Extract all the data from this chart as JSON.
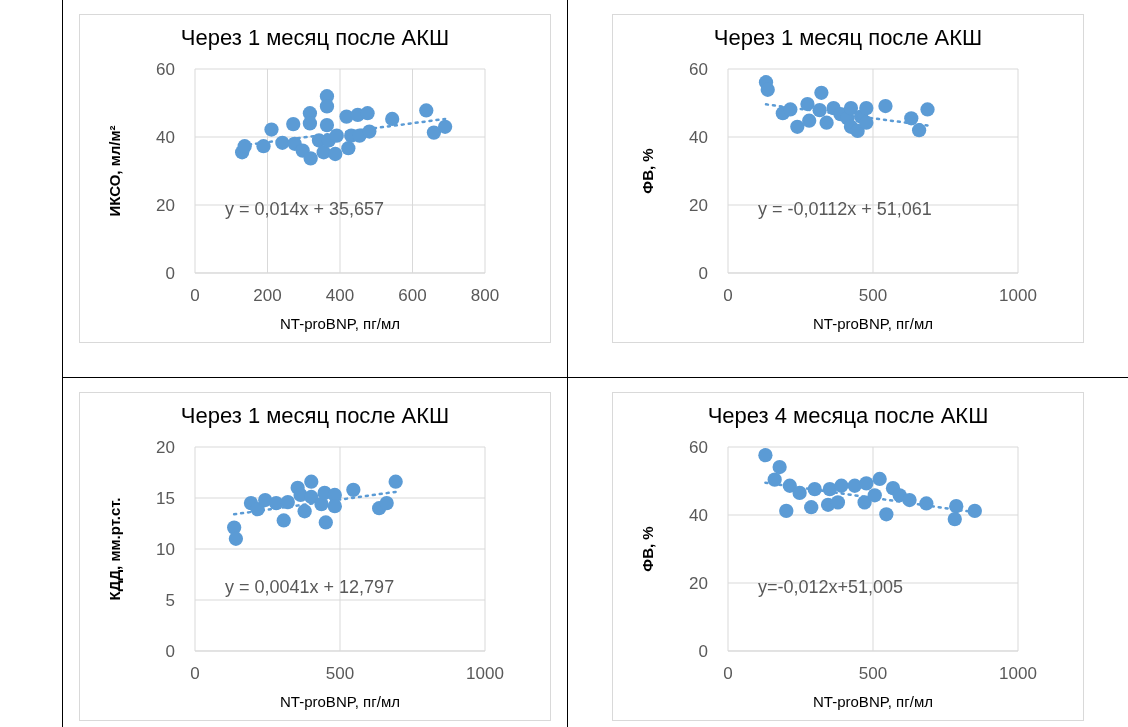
{
  "chart_data": [
    {
      "type": "scatter",
      "title": "Через 1 месяц после АКШ",
      "xlabel": "NT-proBNP, пг/мл",
      "ylabel": "ИКСО, мл/м²",
      "xlim": [
        0,
        800
      ],
      "xticks": [
        0,
        200,
        400,
        600,
        800
      ],
      "ylim": [
        0,
        60
      ],
      "yticks": [
        0,
        20,
        40,
        60
      ],
      "grid": true,
      "marker": "circle",
      "annotations": [
        "y = 0,014x + 35,657"
      ],
      "series": [
        {
          "type": "scatter",
          "color": "#5b9bd5",
          "x": [
            130,
            137,
            189,
            211,
            241,
            271,
            275,
            297,
            317,
            317,
            319,
            342,
            355,
            364,
            364,
            364,
            369,
            387,
            391,
            418,
            423,
            431,
            449,
            454,
            476,
            481,
            544,
            638,
            659,
            690
          ],
          "values": [
            35.5,
            37.3,
            37.3,
            42.2,
            38.3,
            43.8,
            38,
            36,
            47,
            44,
            33.7,
            39,
            35.5,
            52,
            49,
            43.5,
            39,
            35,
            40.4,
            46,
            36.7,
            40.4,
            46.5,
            40.4,
            47,
            41.6,
            45.3,
            47.8,
            41.3,
            43
          ]
        },
        {
          "type": "line",
          "color": "#5b9bd5",
          "line_style": "dotted",
          "marker": "none",
          "x": [
            130,
            690
          ],
          "values": [
            37.5,
            45.3
          ]
        }
      ]
    },
    {
      "type": "scatter",
      "title": "Через 1 месяц после АКШ",
      "xlabel": "NT-proBNP, пг/мл",
      "ylabel": "ФВ, %",
      "xlim": [
        0,
        1000
      ],
      "xticks": [
        0,
        500,
        1000
      ],
      "ylim": [
        0,
        60
      ],
      "yticks": [
        0,
        20,
        40,
        60
      ],
      "grid": true,
      "marker": "circle",
      "annotations": [
        "y = -0,0112x + 51,061"
      ],
      "series": [
        {
          "type": "scatter",
          "color": "#5b9bd5",
          "x": [
            131,
            137,
            189,
            215,
            239,
            274,
            280,
            322,
            316,
            340,
            364,
            388,
            412,
            424,
            424,
            447,
            459,
            477,
            477,
            543,
            632,
            659,
            688
          ],
          "values": [
            56.1,
            53.9,
            47,
            48.1,
            43,
            49.7,
            44.8,
            53,
            47.9,
            44.2,
            48.5,
            46.7,
            45.5,
            48.5,
            43,
            41.8,
            46,
            48.5,
            44.2,
            49.1,
            45.5,
            42,
            48.1
          ]
        },
        {
          "type": "line",
          "color": "#5b9bd5",
          "line_style": "dotted",
          "marker": "none",
          "x": [
            131,
            688
          ],
          "values": [
            49.6,
            43.4
          ]
        }
      ]
    },
    {
      "type": "scatter",
      "title": "Через 1 месяц после АКШ",
      "xlabel": "NT-proBNP, пг/мл",
      "ylabel": "КДД, мм.рт.ст.",
      "xlim": [
        0,
        1000
      ],
      "xticks": [
        0,
        500,
        1000
      ],
      "ylim": [
        0,
        20
      ],
      "yticks": [
        0,
        5,
        10,
        15,
        20
      ],
      "grid": true,
      "marker": "circle",
      "annotations": [
        "y = 0,0041x + 12,797"
      ],
      "series": [
        {
          "type": "scatter",
          "color": "#5b9bd5",
          "x": [
            135,
            141,
            193,
            216,
            242,
            280,
            306,
            320,
            354,
            364,
            378,
            401,
            401,
            436,
            447,
            451,
            482,
            482,
            546,
            635,
            661,
            692
          ],
          "values": [
            12.1,
            11,
            14.5,
            13.9,
            14.8,
            14.5,
            12.8,
            14.6,
            16,
            15.3,
            13.7,
            16.6,
            15.1,
            14.4,
            15.5,
            12.6,
            15.3,
            14.2,
            15.8,
            14,
            14.5,
            16.6
          ]
        },
        {
          "type": "line",
          "color": "#5b9bd5",
          "line_style": "dotted",
          "marker": "none",
          "x": [
            135,
            692
          ],
          "values": [
            13.4,
            15.6
          ]
        }
      ]
    },
    {
      "type": "scatter",
      "title": "Через 4 месяца после АКШ",
      "xlabel": "NT-proBNP, пг/мл",
      "ylabel": "ФВ, %",
      "xlim": [
        0,
        1000
      ],
      "xticks": [
        0,
        500,
        1000
      ],
      "ylim": [
        0,
        60
      ],
      "yticks": [
        0,
        20,
        40,
        60
      ],
      "grid": true,
      "marker": "circle",
      "annotations": [
        "y=-0,012x+51,005"
      ],
      "series": [
        {
          "type": "scatter",
          "color": "#5b9bd5",
          "x": [
            129,
            178,
            161,
            201,
            213,
            247,
            287,
            299,
            345,
            351,
            379,
            391,
            437,
            471,
            477,
            506,
            523,
            546,
            569,
            592,
            626,
            684,
            787,
            782,
            851
          ],
          "values": [
            57.6,
            54.1,
            50.4,
            41.2,
            48.6,
            46.5,
            42.3,
            47.6,
            43,
            47.6,
            43.7,
            48.6,
            48.6,
            43.7,
            49.3,
            45.8,
            50.6,
            40.2,
            47.9,
            45.8,
            44.4,
            43.4,
            42.6,
            38.8,
            41.2
          ]
        },
        {
          "type": "line",
          "color": "#5b9bd5",
          "line_style": "dotted",
          "marker": "none",
          "x": [
            129,
            851
          ],
          "values": [
            49.5,
            40.8
          ]
        }
      ]
    }
  ]
}
